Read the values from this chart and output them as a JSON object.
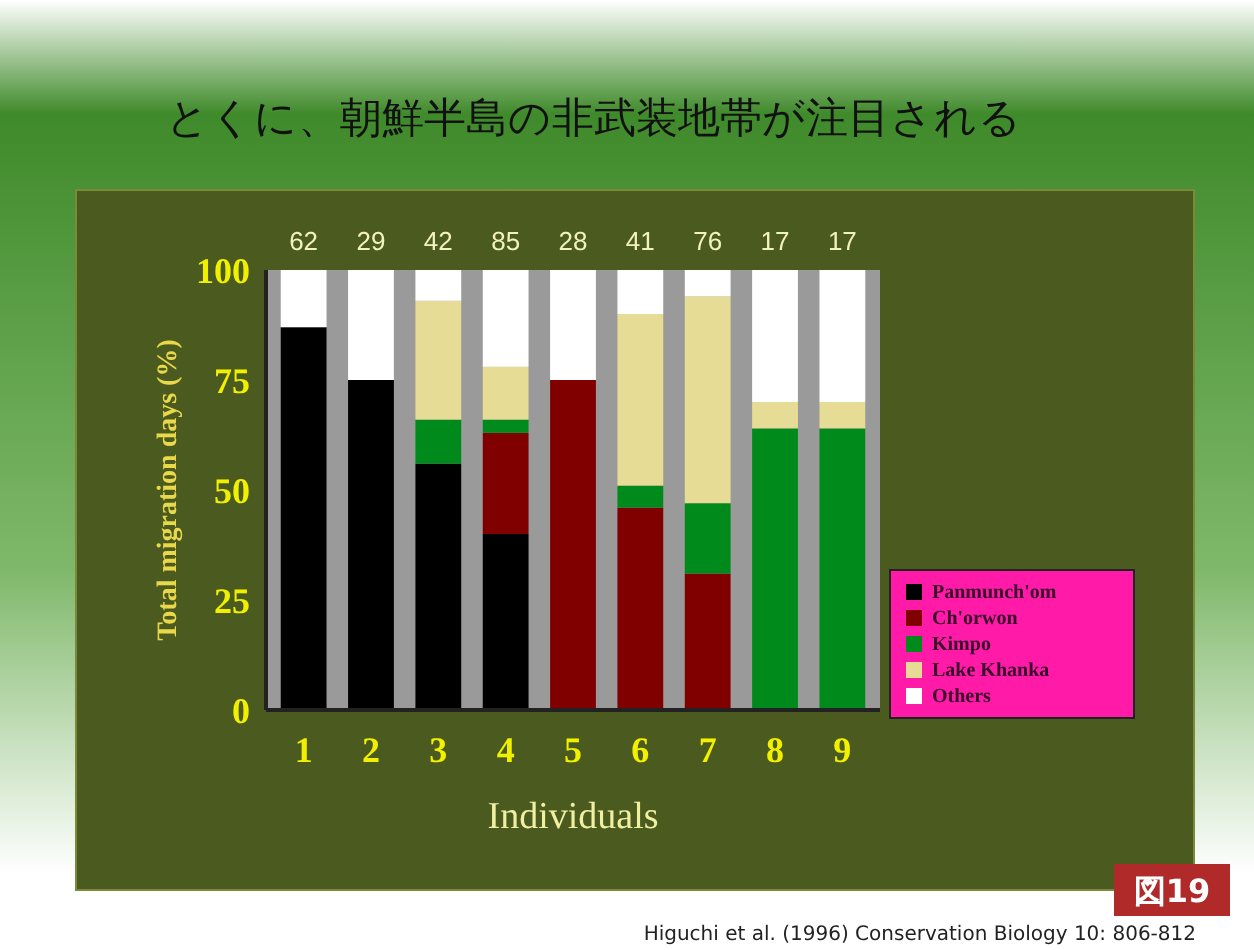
{
  "chart_data": {
    "type": "bar",
    "stacked": true,
    "title": "とくに、朝鮮半島の非武装地帯が注目される",
    "xlabel": "Individuals",
    "ylabel": "Total migration days (%)",
    "categories": [
      "1",
      "2",
      "3",
      "4",
      "5",
      "6",
      "7",
      "8",
      "9"
    ],
    "series": [
      {
        "name": "Panmunch'om",
        "color": "#000000",
        "values": [
          87,
          75,
          56,
          40,
          0,
          0,
          0,
          0,
          0
        ]
      },
      {
        "name": "Ch'orwon",
        "color": "#800000",
        "values": [
          0,
          0,
          0,
          23,
          75,
          46,
          31,
          0,
          0
        ]
      },
      {
        "name": "Kimpo",
        "color": "#008a1c",
        "values": [
          0,
          0,
          10,
          3,
          0,
          5,
          16,
          64,
          64
        ]
      },
      {
        "name": "Lake Khanka",
        "color": "#e6dc96",
        "values": [
          0,
          0,
          27,
          12,
          0,
          39,
          47,
          6,
          6
        ]
      },
      {
        "name": "Others",
        "color": "#ffffff",
        "values": [
          13,
          25,
          7,
          22,
          25,
          10,
          6,
          30,
          30
        ]
      }
    ],
    "ylim": [
      0,
      100
    ],
    "yticks": [
      0,
      25,
      50,
      75,
      100
    ],
    "legend": "right",
    "annotations": [
      "62",
      "29",
      "42",
      "85",
      "28",
      "41",
      "76",
      "17",
      "17",
      "図19",
      "Higuchi et al. (1996) Conservation Biology 10: 806-812"
    ]
  }
}
